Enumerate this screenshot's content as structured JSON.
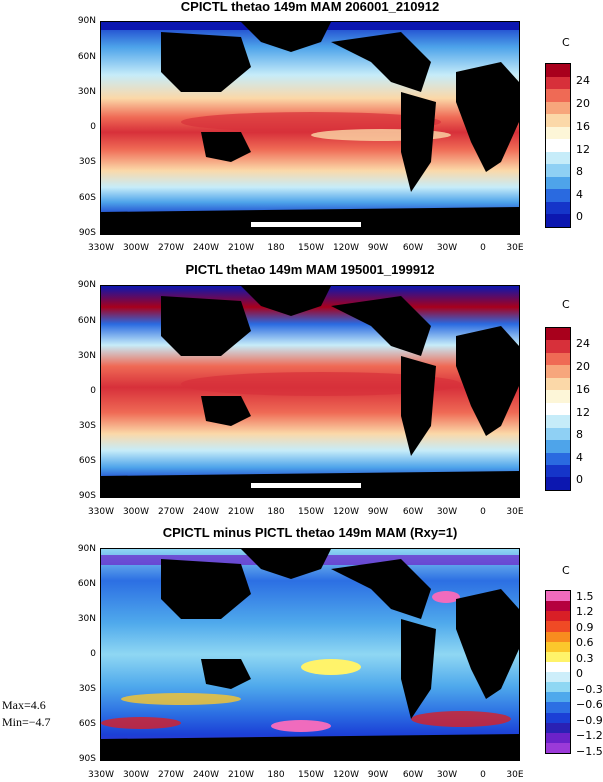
{
  "panels": [
    {
      "title": "CPICTL thetao 149m MAM 206001_210912",
      "colorbar_unit": "C",
      "colorbar_labels": [
        "24",
        "20",
        "16",
        "12",
        "8",
        "4",
        "0"
      ],
      "colors": [
        "#a8001c",
        "#d7303a",
        "#ef6a55",
        "#f7a67c",
        "#fbd8a8",
        "#fdf6d8",
        "#ffffff",
        "#c6ecf9",
        "#8fd0f4",
        "#4ea4ea",
        "#2a6ae0",
        "#1535c9",
        "#0c17b0"
      ]
    },
    {
      "title": "PICTL thetao 149m MAM 195001_199912",
      "colorbar_unit": "C",
      "colorbar_labels": [
        "24",
        "20",
        "16",
        "12",
        "8",
        "4",
        "0"
      ],
      "colors": [
        "#a8001c",
        "#d7303a",
        "#ef6a55",
        "#f7a67c",
        "#fbd8a8",
        "#fdf6d8",
        "#ffffff",
        "#c6ecf9",
        "#8fd0f4",
        "#4ea4ea",
        "#2a6ae0",
        "#1535c9",
        "#0c17b0"
      ]
    },
    {
      "title": "CPICTL minus PICTL thetao 149m MAM (Rxy=1)",
      "colorbar_unit": "C",
      "colorbar_labels": [
        "1.5",
        "1.2",
        "0.9",
        "0.6",
        "0.3",
        "0",
        "−0.3",
        "−0.6",
        "−0.9",
        "−1.2",
        "−1.5"
      ],
      "colors": [
        "#f06bbd",
        "#b5003e",
        "#d91f26",
        "#f04a25",
        "#f88c1f",
        "#fbc72c",
        "#fff36a",
        "#ffffff",
        "#cdeefa",
        "#8fd7f3",
        "#4fa9ec",
        "#2c6fe3",
        "#1b3fd6",
        "#2a21b4",
        "#6b22c9",
        "#9b3ad8"
      ]
    }
  ],
  "lat_labels": [
    "90N",
    "60N",
    "30N",
    "0",
    "30S",
    "60S",
    "90S"
  ],
  "lon_labels": [
    "330W",
    "300W",
    "270W",
    "240W",
    "210W",
    "180",
    "150W",
    "120W",
    "90W",
    "60W",
    "30W",
    "0",
    "30E"
  ],
  "stats": {
    "max": "Max=4.6",
    "min": "Min=−4.7"
  }
}
